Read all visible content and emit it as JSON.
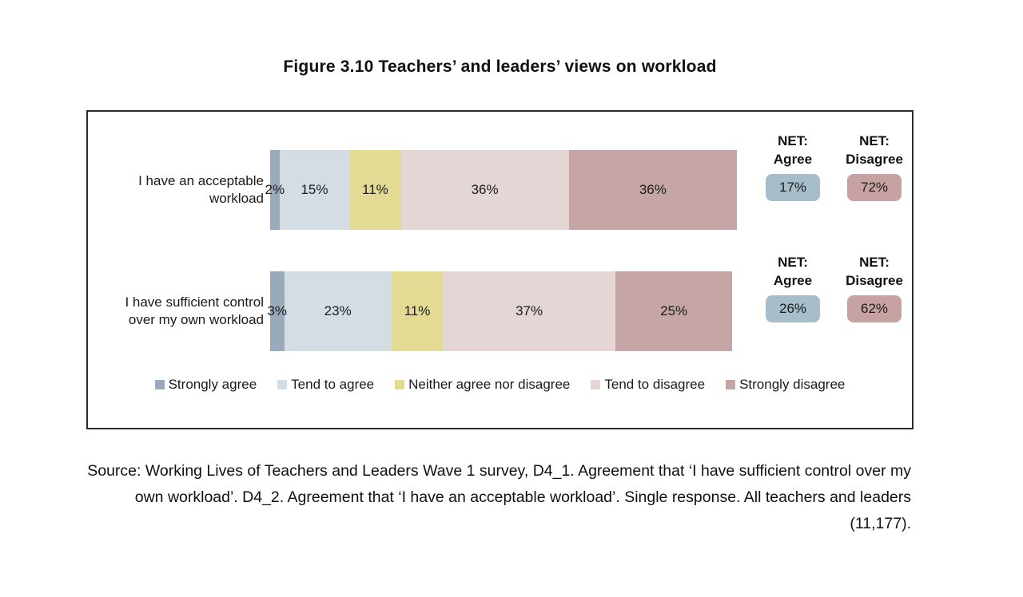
{
  "figure": {
    "title": "Figure 3.10 Teachers’ and leaders’ views on workload",
    "source": "Source: Working Lives of Teachers and Leaders Wave 1 survey, D4_1. Agreement that ‘I have sufficient control over my own workload’. D4_2. Agreement that ‘I have an acceptable workload’. Single response. All teachers and leaders (11,177)."
  },
  "chart_data": {
    "type": "bar",
    "orientation": "horizontal",
    "stacked": true,
    "unit": "%",
    "xlim": [
      0,
      100
    ],
    "grid": false,
    "legend_position": "bottom",
    "categories": [
      "I have an acceptable workload",
      "I have sufficient control over my own workload"
    ],
    "series": [
      {
        "name": "Strongly agree",
        "color": "#99aaba",
        "values": [
          2,
          3
        ]
      },
      {
        "name": "Tend to agree",
        "color": "#d4dde3",
        "values": [
          15,
          23
        ]
      },
      {
        "name": "Neither agree nor disagree",
        "color": "#e3db94",
        "values": [
          11,
          11
        ]
      },
      {
        "name": "Tend to disagree",
        "color": "#e3d6d4",
        "values": [
          36,
          37
        ]
      },
      {
        "name": "Strongly disagree",
        "color": "#c5a5a5",
        "values": [
          36,
          25
        ]
      }
    ],
    "net_headers": {
      "agree": [
        "NET:",
        "Agree"
      ],
      "disagree": [
        "NET:",
        "Disagree"
      ]
    },
    "nets": [
      {
        "agree": 17,
        "disagree": 72
      },
      {
        "agree": 26,
        "disagree": 62
      }
    ],
    "colors": {
      "net_agree_badge": "#a7bdc9",
      "net_disagree_badge": "#c7a2a3",
      "frame_border": "#2b2b2b"
    }
  }
}
